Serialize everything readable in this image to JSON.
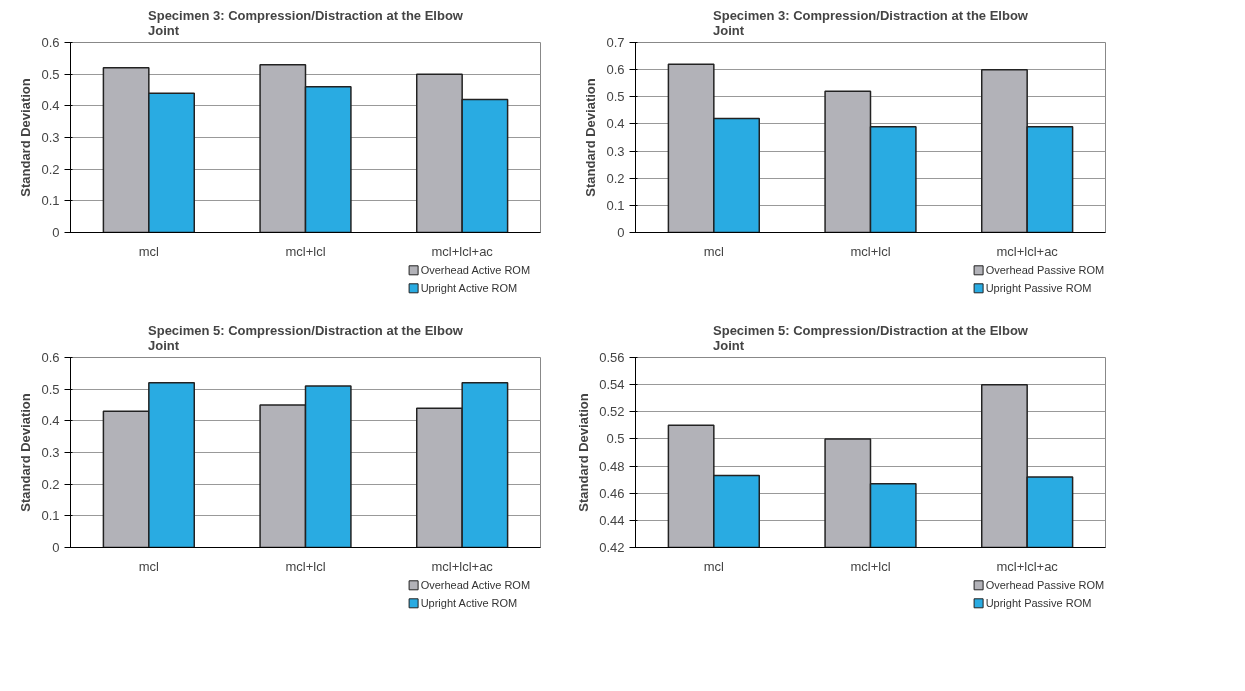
{
  "chart_data": [
    {
      "type": "bar",
      "title": "Specimen 3: Compression/Distraction at the Elbow Joint",
      "ylabel": "Standard Deviation",
      "categories": [
        "mcl",
        "mcl+lcl",
        "mcl+lcl+ac"
      ],
      "series": [
        {
          "name": "Overhead Active ROM",
          "color": "#b2b2b8",
          "values": [
            0.52,
            0.53,
            0.5
          ]
        },
        {
          "name": "Upright Active ROM",
          "color": "#29abe2",
          "values": [
            0.44,
            0.46,
            0.42
          ]
        }
      ],
      "ylim": [
        0,
        0.6
      ],
      "yticks": [
        0,
        0.1,
        0.2,
        0.3,
        0.4,
        0.5,
        0.6
      ],
      "grid": "y",
      "legend": "bottom right"
    },
    {
      "type": "bar",
      "title": "Specimen 3: Compression/Distraction at the Elbow Joint",
      "ylabel": "Standard Deviation",
      "categories": [
        "mcl",
        "mcl+lcl",
        "mcl+lcl+ac"
      ],
      "series": [
        {
          "name": "Overhead Passive ROM",
          "color": "#b2b2b8",
          "values": [
            0.62,
            0.52,
            0.6
          ]
        },
        {
          "name": "Upright Passive ROM",
          "color": "#29abe2",
          "values": [
            0.42,
            0.39,
            0.39
          ]
        }
      ],
      "ylim": [
        0,
        0.7
      ],
      "yticks": [
        0,
        0.1,
        0.2,
        0.3,
        0.4,
        0.5,
        0.6,
        0.7
      ],
      "grid": "y",
      "legend": "bottom right"
    },
    {
      "type": "bar",
      "title": "Specimen 5: Compression/Distraction at the Elbow Joint",
      "ylabel": "Standard Deviation",
      "categories": [
        "mcl",
        "mcl+lcl",
        "mcl+lcl+ac"
      ],
      "series": [
        {
          "name": "Overhead Active ROM",
          "color": "#b2b2b8",
          "values": [
            0.43,
            0.45,
            0.44
          ]
        },
        {
          "name": "Upright Active ROM",
          "color": "#29abe2",
          "values": [
            0.52,
            0.51,
            0.52
          ]
        }
      ],
      "ylim": [
        0,
        0.6
      ],
      "yticks": [
        0,
        0.1,
        0.2,
        0.3,
        0.4,
        0.5,
        0.6
      ],
      "grid": "y",
      "legend": "bottom right"
    },
    {
      "type": "bar",
      "title": "Specimen 5: Compression/Distraction at the Elbow Joint",
      "ylabel": "Standard Deviation",
      "categories": [
        "mcl",
        "mcl+lcl",
        "mcl+lcl+ac"
      ],
      "series": [
        {
          "name": "Overhead Passive ROM",
          "color": "#b2b2b8",
          "values": [
            0.51,
            0.5,
            0.54
          ]
        },
        {
          "name": "Upright Passive ROM",
          "color": "#29abe2",
          "values": [
            0.473,
            0.467,
            0.472
          ]
        }
      ],
      "ylim": [
        0.42,
        0.56
      ],
      "yticks": [
        0.42,
        0.44,
        0.46,
        0.48,
        0.5,
        0.52,
        0.54,
        0.56
      ],
      "grid": "y",
      "legend": "bottom right"
    }
  ]
}
